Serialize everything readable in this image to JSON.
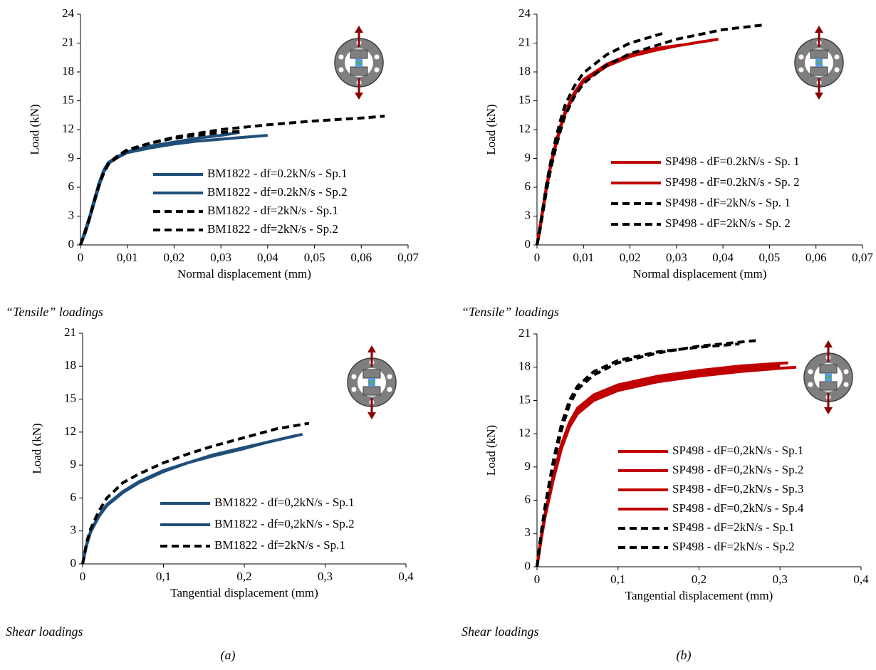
{
  "chart_data": [
    {
      "type": "line",
      "xlabel": "Normal displacement (mm)",
      "ylabel": "Load (kN)",
      "xlim": [
        0,
        0.07
      ],
      "xticks": [
        0,
        {
          "value": 0.01,
          "label": "0,01"
        },
        {
          "value": 0.02,
          "label": "0,02"
        },
        {
          "value": 0.03,
          "label": "0,03"
        },
        {
          "value": 0.04,
          "label": "0,04"
        },
        {
          "value": 0.05,
          "label": "0,05"
        },
        {
          "value": 0.06,
          "label": "0,06"
        },
        {
          "value": 0.07,
          "label": "0,07"
        }
      ],
      "ylim": [
        0,
        24
      ],
      "yticks": [
        0,
        3,
        6,
        9,
        12,
        15,
        18,
        21,
        24
      ],
      "legend": "lower right",
      "series": [
        {
          "name": "BM1822 - df=0.2kN/s - Sp.1",
          "color": "#1f4e79",
          "dash": false,
          "x": [
            0,
            0.001,
            0.002,
            0.003,
            0.004,
            0.005,
            0.006,
            0.008,
            0.01,
            0.015,
            0.02,
            0.025,
            0.03,
            0.034
          ],
          "values": [
            0,
            1.5,
            3,
            4.8,
            6.5,
            7.8,
            8.6,
            9.2,
            9.7,
            10.3,
            10.7,
            11.1,
            11.4,
            11.7
          ]
        },
        {
          "name": "BM1822 - df=0.2kN/s - Sp.2",
          "color": "#1f4e79",
          "dash": false,
          "x": [
            0,
            0.001,
            0.002,
            0.003,
            0.004,
            0.005,
            0.006,
            0.008,
            0.01,
            0.015,
            0.02,
            0.025,
            0.03,
            0.035,
            0.04
          ],
          "values": [
            0,
            1.2,
            2.8,
            4.5,
            6.2,
            7.6,
            8.5,
            9.1,
            9.6,
            10.1,
            10.5,
            10.8,
            11.0,
            11.2,
            11.4
          ]
        },
        {
          "name": "BM1822 - df=2kN/s - Sp.1",
          "color": "#000000",
          "dash": true,
          "x": [
            0,
            0.001,
            0.002,
            0.003,
            0.004,
            0.005,
            0.006,
            0.008,
            0.01,
            0.015,
            0.02,
            0.025,
            0.03,
            0.034
          ],
          "values": [
            0,
            1.4,
            3,
            4.7,
            6.3,
            7.6,
            8.5,
            9.3,
            9.9,
            10.6,
            11.1,
            11.4,
            11.7,
            11.8
          ]
        },
        {
          "name": "BM1822 - df=2kN/s - Sp.2",
          "color": "#000000",
          "dash": true,
          "x": [
            0,
            0.001,
            0.002,
            0.003,
            0.004,
            0.005,
            0.006,
            0.008,
            0.01,
            0.015,
            0.02,
            0.03,
            0.04,
            0.05,
            0.06,
            0.065
          ],
          "values": [
            0,
            1.3,
            2.9,
            4.6,
            6.2,
            7.5,
            8.4,
            9.2,
            9.8,
            10.6,
            11.2,
            12.0,
            12.5,
            12.9,
            13.2,
            13.4
          ]
        }
      ]
    },
    {
      "type": "line",
      "xlabel": "Normal displacement (mm)",
      "ylabel": "Load (kN)",
      "xlim": [
        0,
        0.07
      ],
      "xticks": [
        0,
        {
          "value": 0.01,
          "label": "0,01"
        },
        {
          "value": 0.02,
          "label": "0,02"
        },
        {
          "value": 0.03,
          "label": "0,03"
        },
        {
          "value": 0.04,
          "label": "0,04"
        },
        {
          "value": 0.05,
          "label": "0,05"
        },
        {
          "value": 0.06,
          "label": "0,06"
        },
        {
          "value": 0.07,
          "label": "0,07"
        }
      ],
      "ylim": [
        0,
        24
      ],
      "yticks": [
        0,
        3,
        6,
        9,
        12,
        15,
        18,
        21,
        24
      ],
      "legend": "lower right",
      "series": [
        {
          "name": "SP498 - dF=0.2kN/s - Sp. 1",
          "color": "#c00000",
          "dash": false,
          "x": [
            0,
            0.0005,
            0.001,
            0.002,
            0.003,
            0.004,
            0.005,
            0.006,
            0.008,
            0.01,
            0.015,
            0.02,
            0.025,
            0.031
          ],
          "values": [
            0,
            1.5,
            3,
            6,
            8.5,
            10.5,
            12.3,
            13.8,
            15.8,
            17.2,
            18.8,
            19.8,
            20.4,
            20.8
          ]
        },
        {
          "name": "SP498 - dF=0.2kN/s - Sp. 2",
          "color": "#c00000",
          "dash": false,
          "x": [
            0,
            0.0005,
            0.001,
            0.002,
            0.003,
            0.004,
            0.005,
            0.006,
            0.008,
            0.01,
            0.015,
            0.02,
            0.025,
            0.03,
            0.035,
            0.039
          ],
          "values": [
            0,
            1.2,
            2.8,
            5.8,
            8.3,
            10.3,
            12.1,
            13.6,
            15.6,
            17,
            18.6,
            19.6,
            20.2,
            20.7,
            21.1,
            21.4
          ]
        },
        {
          "name": "SP498 - dF=2kN/s - Sp. 1",
          "color": "#000000",
          "dash": true,
          "x": [
            0,
            0.0005,
            0.001,
            0.002,
            0.003,
            0.004,
            0.005,
            0.006,
            0.008,
            0.01,
            0.015,
            0.02,
            0.027
          ],
          "values": [
            0,
            1.4,
            3,
            6.2,
            8.8,
            11,
            12.9,
            14.5,
            16.5,
            17.9,
            19.8,
            21,
            22
          ]
        },
        {
          "name": "SP498 - dF=2kN/s - Sp. 2",
          "color": "#000000",
          "dash": true,
          "x": [
            0,
            0.0005,
            0.001,
            0.002,
            0.003,
            0.004,
            0.005,
            0.006,
            0.008,
            0.01,
            0.015,
            0.02,
            0.03,
            0.04,
            0.049
          ],
          "values": [
            0,
            1.1,
            2.6,
            5.5,
            8,
            10,
            11.8,
            13.4,
            15.4,
            16.8,
            18.7,
            19.9,
            21.4,
            22.4,
            22.9
          ]
        }
      ]
    },
    {
      "type": "line",
      "xlabel": "Tangential displacement (mm)",
      "ylabel": "Load (kN)",
      "xlim": [
        0,
        0.4
      ],
      "xticks": [
        0,
        {
          "value": 0.1,
          "label": "0,1"
        },
        {
          "value": 0.2,
          "label": "0,2"
        },
        {
          "value": 0.3,
          "label": "0,3"
        },
        {
          "value": 0.4,
          "label": "0,4"
        }
      ],
      "ylim": [
        0,
        21
      ],
      "yticks": [
        0,
        3,
        6,
        9,
        12,
        15,
        18,
        21
      ],
      "legend": "lower right",
      "series": [
        {
          "name": "BM1822 - df=0,2kN/s - Sp.1",
          "color": "#1f4e79",
          "dash": false,
          "x": [
            0,
            0.005,
            0.01,
            0.02,
            0.03,
            0.05,
            0.07,
            0.1,
            0.13,
            0.16,
            0.2,
            0.23,
            0.265
          ],
          "values": [
            0,
            1.8,
            3,
            4.4,
            5.4,
            6.6,
            7.5,
            8.5,
            9.2,
            9.9,
            10.6,
            11.1,
            11.7
          ]
        },
        {
          "name": "BM1822 - df=0,2kN/s - Sp.2",
          "color": "#1f4e79",
          "dash": false,
          "x": [
            0,
            0.005,
            0.01,
            0.02,
            0.03,
            0.05,
            0.07,
            0.1,
            0.13,
            0.16,
            0.2,
            0.23,
            0.272
          ],
          "values": [
            0,
            1.7,
            2.9,
            4.3,
            5.3,
            6.5,
            7.4,
            8.4,
            9.2,
            9.8,
            10.5,
            11.1,
            11.8
          ]
        },
        {
          "name": "BM1822 - df=2kN/s - Sp.1",
          "color": "#000000",
          "dash": true,
          "x": [
            0,
            0.005,
            0.01,
            0.02,
            0.03,
            0.05,
            0.07,
            0.1,
            0.13,
            0.16,
            0.2,
            0.24,
            0.28
          ],
          "values": [
            0,
            2,
            3.2,
            4.8,
            6,
            7.4,
            8.2,
            9.2,
            10,
            10.7,
            11.5,
            12.3,
            12.8
          ]
        }
      ]
    },
    {
      "type": "line",
      "xlabel": "Tangential displacement (mm)",
      "ylabel": "Load (kN)",
      "xlim": [
        0,
        0.4
      ],
      "xticks": [
        0,
        {
          "value": 0.1,
          "label": "0,1"
        },
        {
          "value": 0.2,
          "label": "0,2"
        },
        {
          "value": 0.3,
          "label": "0,3"
        },
        {
          "value": 0.4,
          "label": "0,4"
        }
      ],
      "ylim": [
        0,
        21
      ],
      "yticks": [
        0,
        3,
        6,
        9,
        12,
        15,
        18,
        21
      ],
      "legend": "lower right",
      "series": [
        {
          "name": "SP498 - dF=0,2kN/s - Sp.1",
          "color": "#c00000",
          "dash": false,
          "x": [
            0,
            0.005,
            0.01,
            0.02,
            0.03,
            0.04,
            0.05,
            0.07,
            0.1,
            0.15,
            0.2,
            0.25,
            0.3
          ],
          "values": [
            0,
            2.5,
            4.6,
            8,
            10.8,
            12.8,
            14,
            15.2,
            16.1,
            16.9,
            17.4,
            17.8,
            18.1
          ]
        },
        {
          "name": "SP498 - dF=0,2kN/s - Sp.2",
          "color": "#c00000",
          "dash": false,
          "x": [
            0,
            0.005,
            0.01,
            0.02,
            0.03,
            0.04,
            0.05,
            0.07,
            0.1,
            0.15,
            0.2,
            0.25,
            0.31
          ],
          "values": [
            0,
            2.6,
            4.8,
            8.2,
            11,
            13,
            14.3,
            15.5,
            16.4,
            17.2,
            17.7,
            18.1,
            18.4
          ]
        },
        {
          "name": "SP498 - dF=0,2kN/s - Sp.3",
          "color": "#c00000",
          "dash": false,
          "x": [
            0,
            0.005,
            0.01,
            0.02,
            0.03,
            0.04,
            0.05,
            0.07,
            0.1,
            0.15,
            0.2,
            0.25,
            0.3,
            0.32
          ],
          "values": [
            0,
            2.4,
            4.5,
            7.8,
            10.6,
            12.6,
            13.8,
            15,
            15.9,
            16.7,
            17.2,
            17.6,
            17.9,
            18
          ]
        },
        {
          "name": "SP498 - dF=0,2kN/s - Sp.4",
          "color": "#c00000",
          "dash": false,
          "x": [
            0,
            0.005,
            0.01,
            0.02,
            0.03,
            0.04,
            0.05,
            0.07,
            0.1,
            0.15,
            0.2,
            0.25,
            0.3
          ],
          "values": [
            0,
            2.5,
            4.7,
            8.1,
            10.9,
            12.9,
            14.1,
            15.3,
            16.2,
            17,
            17.5,
            17.9,
            18.2
          ]
        },
        {
          "name": "SP498 - dF=2kN/s - Sp.1",
          "color": "#000000",
          "dash": true,
          "x": [
            0,
            0.005,
            0.01,
            0.02,
            0.03,
            0.04,
            0.05,
            0.07,
            0.1,
            0.15,
            0.2,
            0.25
          ],
          "values": [
            0,
            3,
            5.5,
            9.5,
            12.8,
            15,
            16.3,
            17.6,
            18.6,
            19.4,
            19.8,
            20.1
          ]
        },
        {
          "name": "SP498 - dF=2kN/s - Sp.2",
          "color": "#000000",
          "dash": true,
          "x": [
            0,
            0.005,
            0.01,
            0.02,
            0.03,
            0.04,
            0.05,
            0.07,
            0.1,
            0.15,
            0.2,
            0.27
          ],
          "values": [
            0,
            2.8,
            5.2,
            9.1,
            12.3,
            14.6,
            16,
            17.3,
            18.4,
            19.3,
            19.9,
            20.4
          ]
        }
      ]
    }
  ],
  "notes": [
    "“Tensile” loadings",
    "“Tensile” loadings",
    "Shear loadings",
    "Shear loadings"
  ],
  "panel_labels": [
    "(a)",
    "(b)"
  ]
}
